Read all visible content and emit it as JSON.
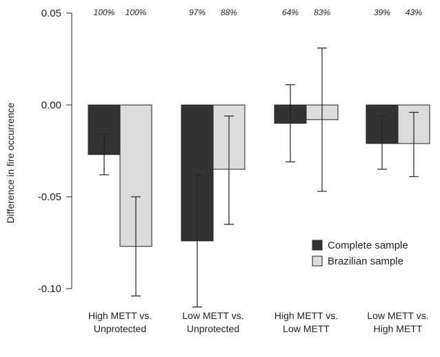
{
  "chart_data": {
    "type": "bar",
    "title": "",
    "xlabel": "",
    "ylabel": "Difference in fire occurrence",
    "ylim": [
      -0.11,
      0.05
    ],
    "y_ticks": [
      "0.05",
      "0.00",
      "-0.05",
      "-0.10"
    ],
    "y_tick_values": [
      0.05,
      0.0,
      -0.05,
      -0.1
    ],
    "categories": [
      [
        "High METT vs.",
        "Unprotected"
      ],
      [
        "Low METT vs.",
        "Unprotected"
      ],
      [
        "High METT vs.",
        "Low METT"
      ],
      [
        "Low METT vs.",
        "High METT"
      ]
    ],
    "series": [
      {
        "name": "Complete sample",
        "color": "#333333",
        "values": [
          -0.027,
          -0.074,
          -0.01,
          -0.021
        ],
        "ci_low": [
          -0.038,
          -0.11,
          -0.031,
          -0.035
        ],
        "ci_high": [
          -0.016,
          -0.038,
          0.011,
          -0.006
        ],
        "pct_labels": [
          "100%",
          "97%",
          "64%",
          "39%"
        ]
      },
      {
        "name": "Brazilian sample",
        "color": "#dcdcdc",
        "values": [
          -0.077,
          -0.035,
          -0.008,
          -0.021
        ],
        "ci_low": [
          -0.104,
          -0.065,
          -0.047,
          -0.039
        ],
        "ci_high": [
          -0.05,
          -0.006,
          0.031,
          -0.004
        ],
        "pct_labels": [
          "100%",
          "88%",
          "83%",
          "43%"
        ]
      }
    ],
    "legend_position": "bottom-right",
    "grid": false
  }
}
